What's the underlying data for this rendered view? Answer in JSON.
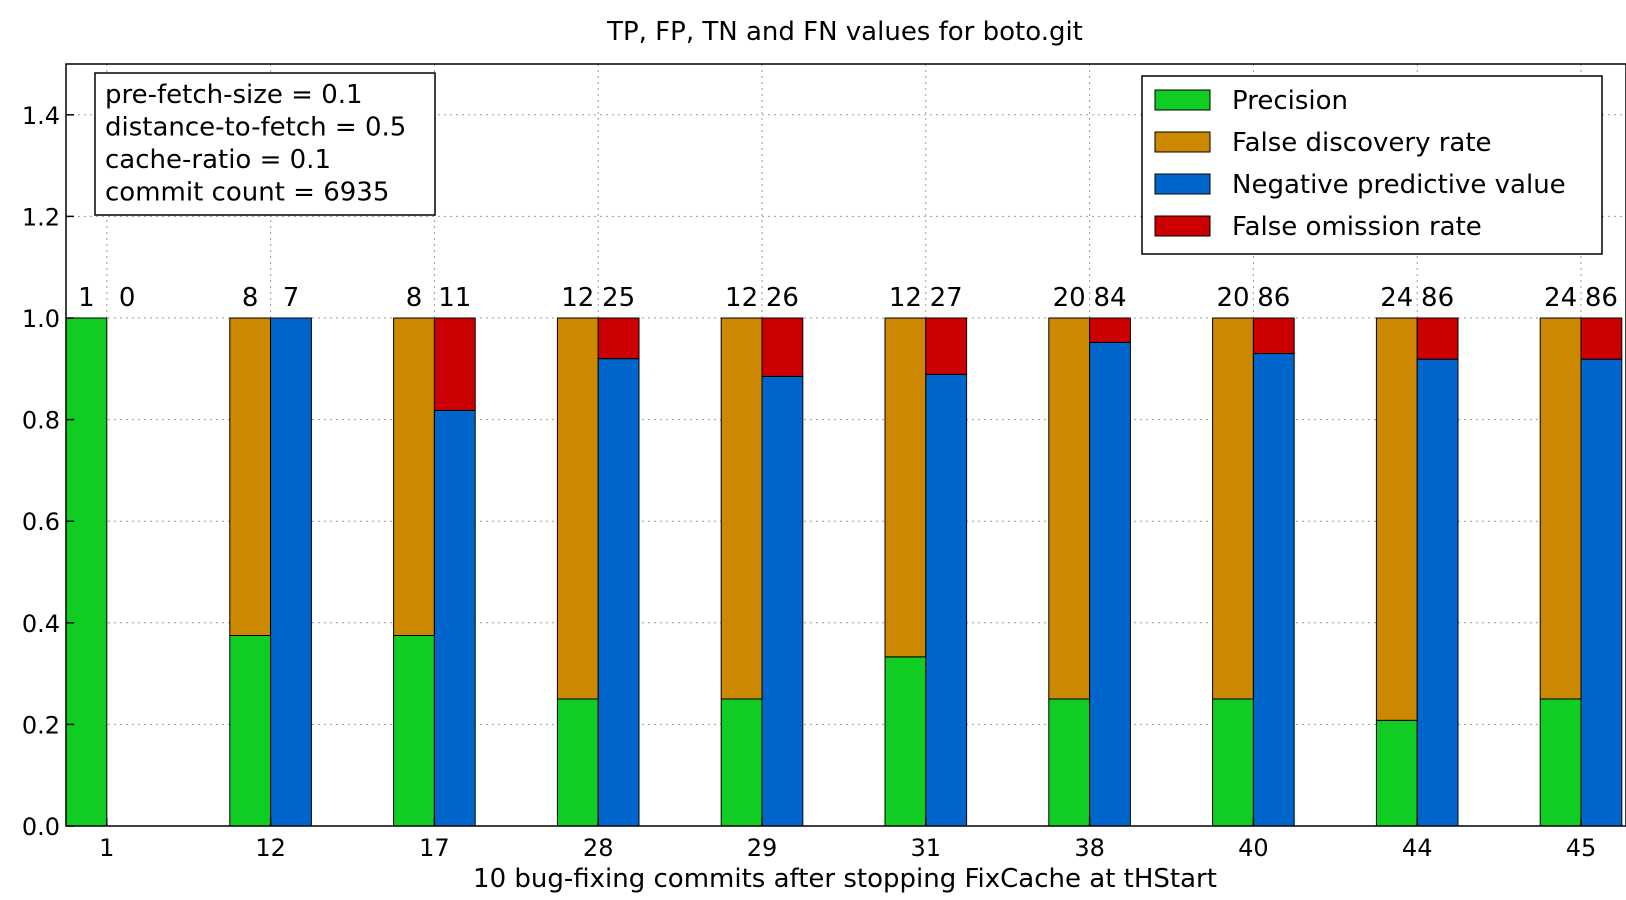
{
  "chart_data": {
    "type": "bar",
    "title": "TP, FP, TN and FN values for boto.git",
    "xlabel": "10 bug-fixing commits after stopping FixCache at tHStart",
    "ylabel": "",
    "ylim": [
      0,
      1.5
    ],
    "yticks": [
      "0.0",
      "0.2",
      "0.4",
      "0.6",
      "0.8",
      "1.0",
      "1.2",
      "1.4"
    ],
    "grid": true,
    "legend_position": "top-right",
    "categories": [
      "1",
      "12",
      "17",
      "28",
      "29",
      "31",
      "38",
      "40",
      "44",
      "45"
    ],
    "series": [
      {
        "name": "Precision",
        "color": "#11cc22",
        "stack": "positive",
        "values": [
          1.0,
          0.375,
          0.375,
          0.25,
          0.25,
          0.333,
          0.25,
          0.25,
          0.208,
          0.25
        ]
      },
      {
        "name": "False discovery rate",
        "color": "#cc8800",
        "stack": "positive",
        "values": [
          0.0,
          0.625,
          0.625,
          0.75,
          0.75,
          0.667,
          0.75,
          0.75,
          0.792,
          0.75
        ]
      },
      {
        "name": "Negative predictive value",
        "color": "#0066cc",
        "stack": "negative",
        "values": [
          0.0,
          1.0,
          0.818,
          0.92,
          0.885,
          0.889,
          0.952,
          0.93,
          0.919,
          0.919
        ]
      },
      {
        "name": "False omission rate",
        "color": "#cc0000",
        "stack": "negative",
        "values": [
          0.0,
          0.0,
          0.182,
          0.08,
          0.115,
          0.111,
          0.048,
          0.07,
          0.081,
          0.081
        ]
      }
    ],
    "positive_totals": [
      "1",
      "8",
      "8",
      "12",
      "12",
      "12",
      "20",
      "20",
      "24",
      "24"
    ],
    "negative_totals": [
      "0",
      "7",
      "11",
      "25",
      "26",
      "27",
      "84",
      "86",
      "86",
      "86"
    ],
    "info_box": [
      "pre-fetch-size = 0.1",
      "distance-to-fetch = 0.5",
      "cache-ratio = 0.1",
      "commit count = 6935"
    ]
  }
}
